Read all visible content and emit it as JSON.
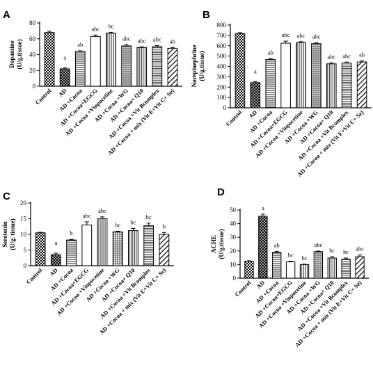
{
  "chart_data": [
    {
      "type": "bar",
      "panel": "A",
      "ylabel": "Dopamine\n(U/g.tissue)",
      "ylim": [
        0,
        80
      ],
      "yticks": [
        0,
        20,
        40,
        60,
        80
      ],
      "categories": [
        "Control",
        "AD",
        "AD +Cocoa",
        "AD +Cocoa+EGCG",
        "AD +Cocoa +Vinpocetine",
        "AD +Cocoa +WG",
        "AD +Cocoa+ Q10",
        "AD +Cocoa +Vit Bcomplex",
        "AD +Cocoa + mix (Vit E+Vit C+ Se)"
      ],
      "values": [
        68,
        22,
        44,
        63,
        67,
        51,
        49,
        50,
        48
      ],
      "errors": [
        1.5,
        1.2,
        0.8,
        1.8,
        1.2,
        1.5,
        0.8,
        1.5,
        1.0
      ],
      "significance": [
        "",
        "a",
        "ab",
        "abc",
        "bc",
        "abc",
        "abc",
        "abc",
        "ab"
      ]
    },
    {
      "type": "bar",
      "panel": "B",
      "ylabel": "Norepinephrine\n(U/g.tissue)",
      "ylim": [
        0,
        800
      ],
      "yticks": [
        0,
        100,
        200,
        300,
        400,
        500,
        600,
        700,
        800
      ],
      "categories": [
        "Control",
        "AD",
        "AD +Cocoa",
        "AD +Cocoa+EGCG",
        "AD +Cocoa +Vinpocetine",
        "AD +Cocoa +WG",
        "AD +Cocoa+ Q10",
        "AD +Cocoa +Vit Bcomplex",
        "AD +Cocoa + mix (Vit E+Vit C+ Se)"
      ],
      "values": [
        718,
        243,
        467,
        625,
        630,
        620,
        425,
        432,
        443
      ],
      "errors": [
        8,
        10,
        8,
        20,
        10,
        8,
        10,
        10,
        10
      ],
      "significance": [
        "",
        "a",
        "ab",
        "abc",
        "abc",
        "abc",
        "abc",
        "abc",
        "ab"
      ]
    },
    {
      "type": "bar",
      "panel": "C",
      "ylabel": "Serotonin\n(U/g. tissue)",
      "ylim": [
        0,
        20
      ],
      "yticks": [
        0,
        5,
        10,
        15,
        20
      ],
      "categories": [
        "Control",
        "AD",
        "AD +Cocoa",
        "AD +Cocoa+EGCG",
        "AD +Cocoa +Vinpocetine",
        "AD +Cocoa +WG",
        "AD +Cocoa+ Q10",
        "AD +Cocoa +Vit Bcomplex",
        "AD +Cocoa + mix (Vit E+Vit C+ Se)"
      ],
      "values": [
        10.5,
        3.5,
        8.2,
        13.0,
        15.0,
        10.8,
        11.2,
        12.8,
        10.0
      ],
      "errors": [
        0.2,
        0.5,
        0.2,
        1.0,
        0.6,
        0.2,
        0.7,
        0.8,
        0.6
      ],
      "significance": [
        "",
        "a",
        "b",
        "abc",
        "abc",
        "bc",
        "bc",
        "bc",
        "b"
      ]
    },
    {
      "type": "bar",
      "panel": "D",
      "ylabel": "ACHE\n(U/g.tissue)",
      "ylim": [
        0,
        50
      ],
      "yticks": [
        0,
        10,
        20,
        30,
        40,
        50
      ],
      "categories": [
        "Control",
        "AD",
        "AD +Cocoa",
        "AD +Cocoa+EGCG",
        "AD +Cocoa +Vinpocetine",
        "AD +Cocoa +WG",
        "AD +Cocoa+ Q10",
        "AD +Cocoa +Vit Bcomplex",
        "AD +Cocoa + mix (Vit E+Vit C+ Se)"
      ],
      "values": [
        12.5,
        45.5,
        19.0,
        12.0,
        10.0,
        19.5,
        14.8,
        14.0,
        15.8
      ],
      "errors": [
        0.3,
        1.5,
        0.6,
        0.5,
        0.3,
        0.4,
        1.0,
        0.8,
        1.2
      ],
      "significance": [
        "",
        "a",
        "ab",
        "bc",
        "bc",
        "abc",
        "bc",
        "bc",
        "abc"
      ]
    }
  ]
}
